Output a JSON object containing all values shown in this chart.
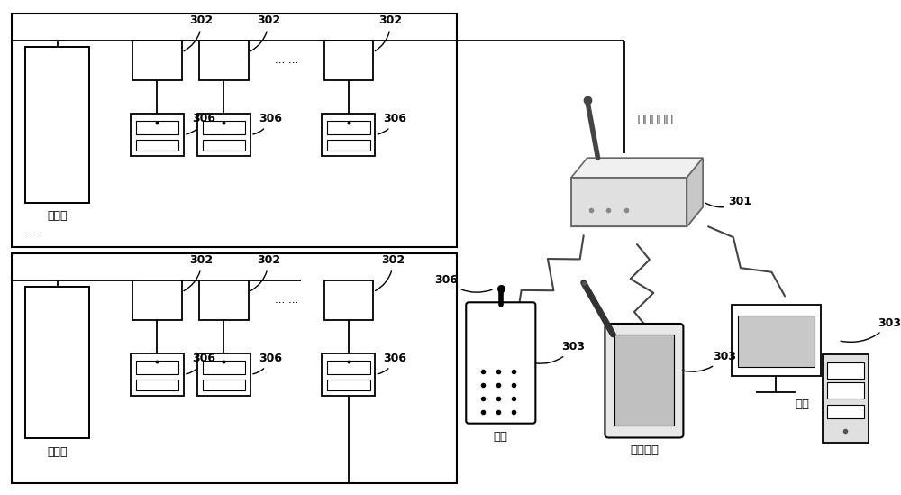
{
  "bg_color": "#ffffff",
  "line_color": "#000000",
  "text_color": "#000000",
  "label_302": "302",
  "label_306": "306",
  "label_301": "301",
  "label_303": "303",
  "label_室外机": "室外机",
  "label_集中控制器": "集中控制器",
  "label_手机": "手机",
  "label_平板电脑": "平板电脑",
  "label_电脑": "电脑",
  "label_dots_h": "... ...",
  "label_dots_v": "... ...",
  "font_size": 9
}
